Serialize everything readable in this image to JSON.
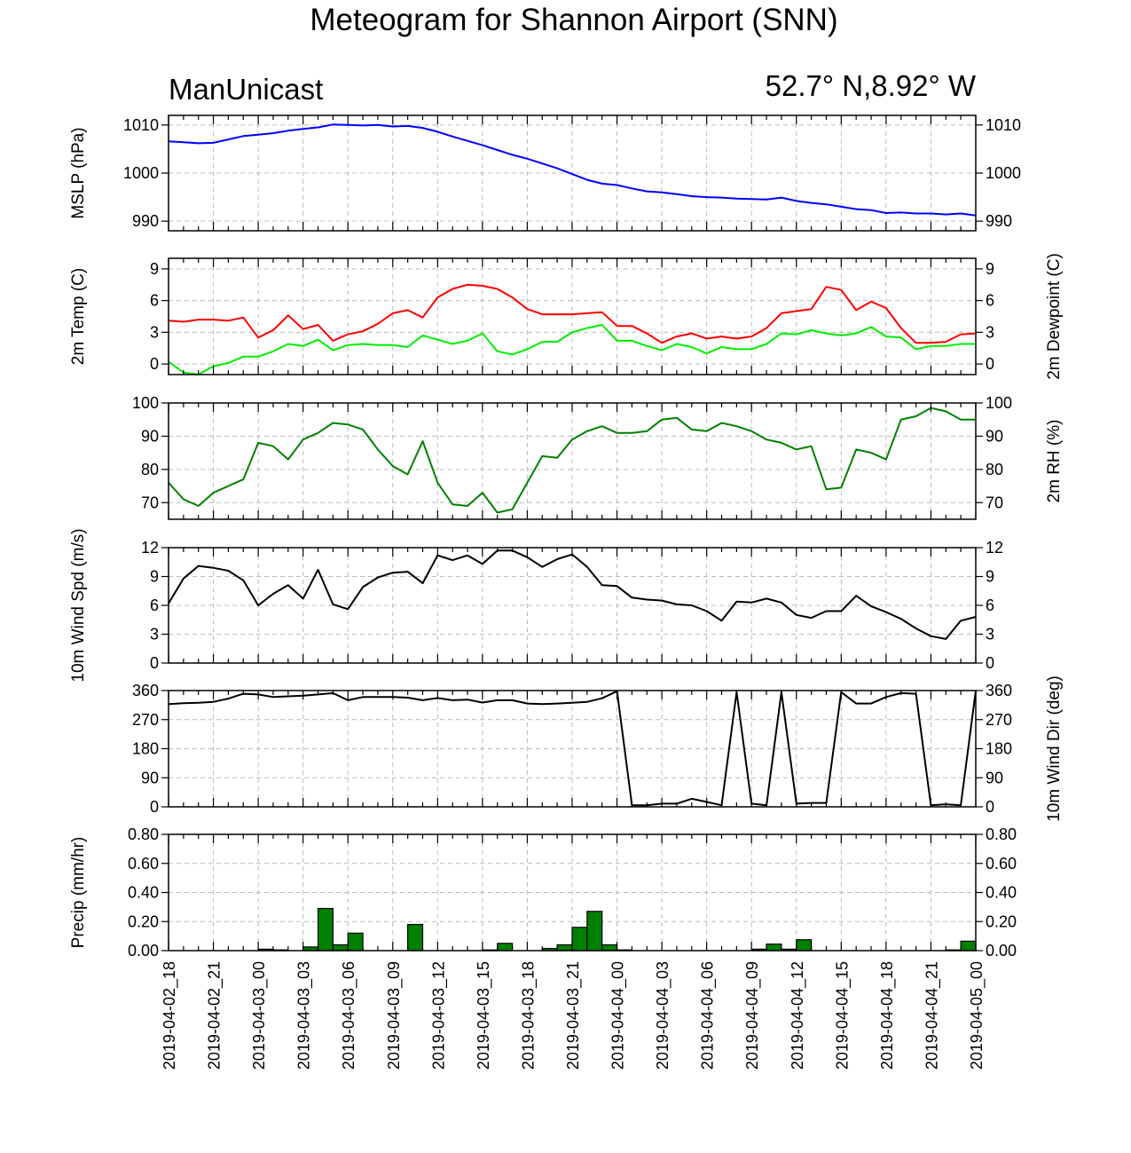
{
  "page": {
    "title": "Meteogram for Shannon Airport (SNN)",
    "model_label": "ManUnicast",
    "location_label": "52.7° N,8.92° W"
  },
  "chart_data": {
    "type": "line",
    "time_hours": [
      0,
      1,
      2,
      3,
      4,
      5,
      6,
      7,
      8,
      9,
      10,
      11,
      12,
      13,
      14,
      15,
      16,
      17,
      18,
      19,
      20,
      21,
      22,
      23,
      24,
      25,
      26,
      27,
      28,
      29,
      30,
      31,
      32,
      33,
      34,
      35,
      36,
      37,
      38,
      39,
      40,
      41,
      42,
      43,
      44,
      45,
      46,
      47,
      48,
      49,
      50,
      51,
      52,
      53,
      54
    ],
    "x_ticks": [
      "2019-04-02_18",
      "2019-04-02_21",
      "2019-04-03_00",
      "2019-04-03_03",
      "2019-04-03_06",
      "2019-04-03_09",
      "2019-04-03_12",
      "2019-04-03_15",
      "2019-04-03_18",
      "2019-04-03_21",
      "2019-04-04_00",
      "2019-04-04_03",
      "2019-04-04_06",
      "2019-04-04_09",
      "2019-04-04_12",
      "2019-04-04_15",
      "2019-04-04_18",
      "2019-04-04_21",
      "2019-04-05_00"
    ],
    "panels": [
      {
        "id": "mslp",
        "ylabel_left": "MSLP (hPa)",
        "ylabel_right": "",
        "ylim": [
          988,
          1012
        ],
        "yticks": [
          990,
          1000,
          1010
        ],
        "tick_labels_left": [
          "990",
          "1000",
          "1010"
        ],
        "tick_labels_right": [
          "990",
          "1000",
          "1010"
        ],
        "grid": true,
        "series": [
          {
            "color": "#0000ff",
            "kind": "line",
            "values": [
              1006.6,
              1006.4,
              1006.2,
              1006.3,
              1007.0,
              1007.7,
              1008.0,
              1008.3,
              1008.8,
              1009.2,
              1009.5,
              1010.1,
              1010.0,
              1009.9,
              1010.0,
              1009.7,
              1009.8,
              1009.4,
              1008.6,
              1007.6,
              1006.7,
              1005.8,
              1004.8,
              1003.8,
              1003.0,
              1002.0,
              1001.0,
              999.8,
              998.6,
              997.8,
              997.5,
              996.8,
              996.2,
              996.0,
              995.6,
              995.2,
              995.0,
              994.9,
              994.7,
              994.6,
              994.5,
              994.9,
              994.2,
              993.8,
              993.5,
              993.0,
              992.5,
              992.3,
              991.7,
              991.8,
              991.6,
              991.6,
              991.4,
              991.6,
              991.2
            ]
          }
        ]
      },
      {
        "id": "temp",
        "ylabel_left": "2m Temp (C)",
        "ylabel_right": "2m Dewpoint (C)",
        "ylim": [
          -1,
          10
        ],
        "yticks": [
          0,
          3,
          6,
          9
        ],
        "tick_labels_left": [
          "0",
          "3",
          "6",
          "9"
        ],
        "tick_labels_right": [
          "0",
          "3",
          "6",
          "9"
        ],
        "grid": true,
        "series": [
          {
            "color": "#ff0000",
            "kind": "line",
            "values": [
              4.1,
              4.0,
              4.2,
              4.2,
              4.1,
              4.4,
              2.5,
              3.2,
              4.6,
              3.3,
              3.7,
              2.2,
              2.8,
              3.1,
              3.8,
              4.8,
              5.1,
              4.4,
              6.3,
              7.1,
              7.5,
              7.4,
              7.1,
              6.3,
              5.2,
              4.7,
              4.7,
              4.7,
              4.8,
              4.9,
              3.6,
              3.6,
              2.9,
              2.0,
              2.6,
              2.9,
              2.4,
              2.6,
              2.4,
              2.6,
              3.4,
              4.8,
              5.0,
              5.2,
              7.3,
              7.0,
              5.1,
              5.9,
              5.3,
              3.4,
              2.0,
              2.0,
              2.1,
              2.8,
              2.9
            ]
          },
          {
            "color": "#00ee00",
            "kind": "line",
            "values": [
              0.2,
              -0.8,
              -1.0,
              -0.2,
              0.1,
              0.7,
              0.7,
              1.2,
              1.9,
              1.7,
              2.3,
              1.3,
              1.8,
              1.9,
              1.8,
              1.8,
              1.6,
              2.7,
              2.3,
              1.9,
              2.2,
              2.9,
              1.2,
              0.9,
              1.4,
              2.1,
              2.1,
              3.0,
              3.4,
              3.7,
              2.2,
              2.2,
              1.7,
              1.3,
              1.9,
              1.6,
              1.0,
              1.6,
              1.4,
              1.4,
              1.9,
              2.9,
              2.8,
              3.2,
              2.9,
              2.7,
              2.9,
              3.5,
              2.6,
              2.5,
              1.4,
              1.7,
              1.7,
              1.9,
              1.9
            ]
          }
        ]
      },
      {
        "id": "rh",
        "ylabel_left": "",
        "ylabel_right": "2m RH (%)",
        "ylim": [
          65,
          100
        ],
        "yticks": [
          70,
          80,
          90,
          100
        ],
        "tick_labels_left": [
          "70",
          "80",
          "90",
          "100"
        ],
        "tick_labels_right": [
          "70",
          "80",
          "90",
          "100"
        ],
        "grid": true,
        "series": [
          {
            "color": "#008000",
            "kind": "line",
            "values": [
              76,
              71,
              69,
              73,
              75,
              77,
              88,
              87,
              83,
              89,
              91,
              94,
              93.5,
              92,
              86,
              81,
              78.5,
              88.5,
              76,
              69.5,
              69,
              73,
              67,
              68,
              76,
              84,
              83.5,
              89,
              91.5,
              93,
              91,
              91,
              91.5,
              95,
              95.5,
              92,
              91.5,
              94,
              93,
              91.5,
              89,
              88,
              86,
              87,
              74,
              74.5,
              86,
              85,
              83,
              95,
              96,
              98.5,
              97.5,
              95,
              95
            ]
          }
        ]
      },
      {
        "id": "wspd",
        "ylabel_left": "10m Wind Spd (m/s)",
        "ylabel_right": "",
        "ylim": [
          0,
          12
        ],
        "yticks": [
          0,
          3,
          6,
          9,
          12
        ],
        "tick_labels_left": [
          "0",
          "3",
          "6",
          "9",
          "12"
        ],
        "tick_labels_right": [
          "0",
          "3",
          "6",
          "9",
          "12"
        ],
        "grid": true,
        "series": [
          {
            "color": "#000000",
            "kind": "line",
            "values": [
              6.2,
              8.8,
              10.1,
              9.9,
              9.6,
              8.6,
              6.0,
              7.2,
              8.1,
              6.7,
              9.7,
              6.1,
              5.6,
              7.9,
              8.9,
              9.4,
              9.5,
              8.3,
              11.2,
              10.7,
              11.2,
              10.3,
              11.7,
              11.7,
              11.0,
              10.0,
              10.8,
              11.3,
              10.0,
              8.1,
              8.0,
              6.8,
              6.6,
              6.5,
              6.1,
              6.0,
              5.4,
              4.4,
              6.4,
              6.3,
              6.7,
              6.3,
              5.0,
              4.7,
              5.4,
              5.4,
              7.0,
              5.9,
              5.3,
              4.6,
              3.6,
              2.8,
              2.5,
              4.4,
              4.8
            ]
          }
        ]
      },
      {
        "id": "wdir",
        "ylabel_left": "",
        "ylabel_right": "10m Wind Dir (deg)",
        "ylim": [
          0,
          360
        ],
        "yticks": [
          0,
          90,
          180,
          270,
          360
        ],
        "tick_labels_left": [
          "0",
          "90",
          "180",
          "270",
          "360"
        ],
        "tick_labels_right": [
          "0",
          "90",
          "180",
          "270",
          "360"
        ],
        "grid": true,
        "series": [
          {
            "color": "#000000",
            "kind": "line",
            "values": [
              318,
              321,
              322,
              325,
              335,
              350,
              348,
              340,
              342,
              344,
              348,
              352,
              330,
              340,
              340,
              340,
              338,
              330,
              337,
              330,
              332,
              323,
              330,
              330,
              320,
              318,
              320,
              322,
              325,
              336,
              358,
              5,
              5,
              10,
              10,
              25,
              15,
              5,
              355,
              10,
              5,
              355,
              10,
              12,
              12,
              355,
              320,
              320,
              340,
              352,
              350,
              5,
              8,
              5,
              360
            ]
          }
        ]
      },
      {
        "id": "precip",
        "ylabel_left": "Precip (mm/hr)",
        "ylabel_right": "",
        "ylim": [
          0,
          0.8
        ],
        "yticks": [
          0,
          0.2,
          0.4,
          0.6,
          0.8
        ],
        "tick_labels_left": [
          "0.00",
          "0.20",
          "0.40",
          "0.60",
          "0.80"
        ],
        "tick_labels_right": [
          "0.00",
          "0.20",
          "0.40",
          "0.60",
          "0.80"
        ],
        "grid": true,
        "series": [
          {
            "color": "#008000",
            "kind": "bar",
            "values": [
              0,
              0,
              0,
              0,
              0,
              0,
              0.01,
              0.005,
              0,
              0.025,
              0.29,
              0.04,
              0.12,
              0,
              0,
              0,
              0.18,
              0,
              0,
              0,
              0,
              0.005,
              0.05,
              0,
              0,
              0.015,
              0.04,
              0.16,
              0.27,
              0.04,
              0.005,
              0,
              0,
              0,
              0,
              0,
              0,
              0,
              0,
              0.01,
              0.045,
              0.01,
              0.075,
              0,
              0,
              0,
              0,
              0,
              0,
              0,
              0,
              0,
              0.005,
              0.065,
              0
            ]
          }
        ]
      }
    ]
  }
}
